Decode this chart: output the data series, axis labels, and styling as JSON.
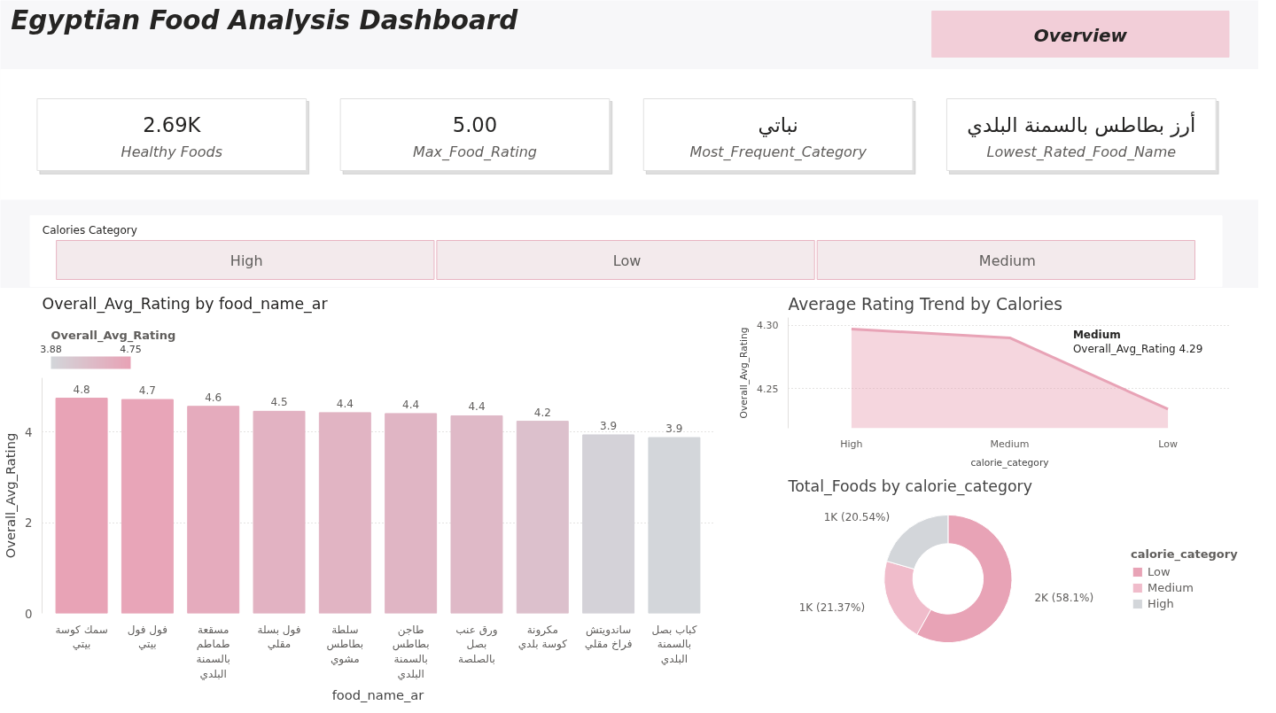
{
  "chart_data": [
    {
      "type": "other",
      "title": "Egyptian Food Analysis Dashboard",
      "annotations": [
        "Overview",
        "2.69K",
        "Healthy Foods",
        "5.00",
        "Max_Food_Rating",
        "نباتي",
        "Most_Frequent_Category",
        "أرز بطاطس بالسمنة البلدي",
        "Lowest_Rated_Food_Name"
      ]
    },
    {
      "type": "other",
      "title": "Calories Category",
      "categories": [
        "High",
        "Low",
        "Medium"
      ]
    },
    {
      "type": "bar",
      "title": "Overall_Avg_Rating by food_name_ar",
      "xlabel": "food_name_ar",
      "ylabel": "Overall_Avg_Rating",
      "clabel": "Overall_Avg_Rating",
      "clim": [
        3.88,
        4.75
      ],
      "cticks": [
        3.88,
        4.75
      ],
      "categories": [
        "سمك كوسة بيتي",
        "فول فول بيتي",
        "مسقعة طماطم بالسمنة البلدي",
        "فول بسلة مقلي",
        "سلطة بطاطس مشوي",
        "طاجن بطاطس بالسمنة البلدي",
        "ورق عنب بصل بالصلصة",
        "مكرونة كوسة بلدي",
        "ساندويتش فراخ مقلي",
        "كباب بصل بالسمنة البلدي"
      ],
      "values": [
        4.75,
        4.72,
        4.57,
        4.46,
        4.43,
        4.41,
        4.36,
        4.24,
        3.94,
        3.88
      ],
      "value_labels": [
        "4.8",
        "4.7",
        "4.6",
        "4.5",
        "4.4",
        "4.4",
        "4.4",
        "4.2",
        "3.9",
        "3.9"
      ],
      "colors": [
        "#e8a3b6",
        "#e8a5b8",
        "#e5abbd",
        "#e2b2c2",
        "#e1b4c3",
        "#e0b5c4",
        "#dfb9c7",
        "#dcc0cc",
        "#d4d2d8",
        "#d3d6da"
      ],
      "ylim": [
        0,
        5.2
      ],
      "yticks": [
        0,
        2,
        4
      ],
      "grid": "y"
    },
    {
      "type": "area",
      "title": "Average Rating Trend by Calories",
      "xlabel": "calorie_category",
      "ylabel": "Overall_Avg_Rating",
      "categories": [
        "High",
        "Medium",
        "Low"
      ],
      "series": [
        {
          "color": "#e8a3b6",
          "values": [
            4.297,
            4.29,
            4.234
          ]
        }
      ],
      "ylim": [
        4.219,
        4.306
      ],
      "yticks": [
        {
          "value": 4.25,
          "label": "4.25"
        },
        {
          "value": 4.3,
          "label": "4.30"
        }
      ],
      "grid": "y",
      "annotations": [
        "Medium",
        "Overall_Avg_Rating 4.29"
      ]
    },
    {
      "type": "donut",
      "title": "Total_Foods by calorie_category",
      "legend_title": "calorie_category",
      "legend": "right",
      "categories": [
        "Low",
        "Medium",
        "High"
      ],
      "values": [
        58.1,
        21.37,
        20.54
      ],
      "value_labels": [
        "2K (58.1%)",
        "1K (21.37%)",
        "1K (20.54%)"
      ],
      "colors": [
        "#e8a3b6",
        "#f0bccb",
        "#d3d6da"
      ]
    }
  ]
}
